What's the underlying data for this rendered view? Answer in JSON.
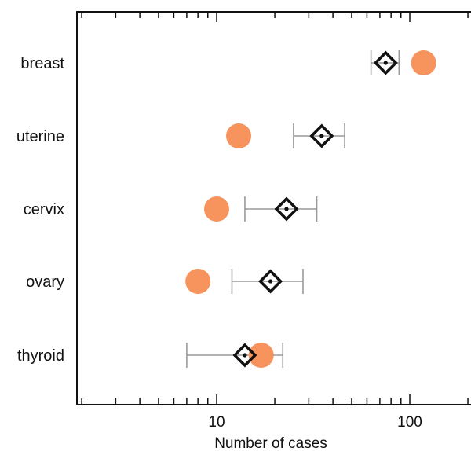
{
  "chart_data": {
    "type": "scatter",
    "title": "",
    "xlabel": "Number of cases",
    "ylabel": "",
    "x_scale": "log",
    "xlim": [
      2,
      200
    ],
    "x_tick_labels": [
      "10",
      "100"
    ],
    "x_tick_values": [
      10,
      100
    ],
    "grid": false,
    "legend": "none",
    "categories": [
      "breast",
      "uterine",
      "cervix",
      "ovary",
      "thyroid"
    ],
    "series": [
      {
        "marker": "circle",
        "color": "#f7935c",
        "values": [
          118,
          13,
          10,
          8,
          17
        ]
      },
      {
        "marker": "diamond",
        "color": "#111111",
        "values": [
          75,
          35,
          23,
          19,
          14
        ],
        "error_low": [
          63,
          25,
          14,
          12,
          7
        ],
        "error_high": [
          88,
          46,
          33,
          28,
          22
        ]
      }
    ]
  }
}
